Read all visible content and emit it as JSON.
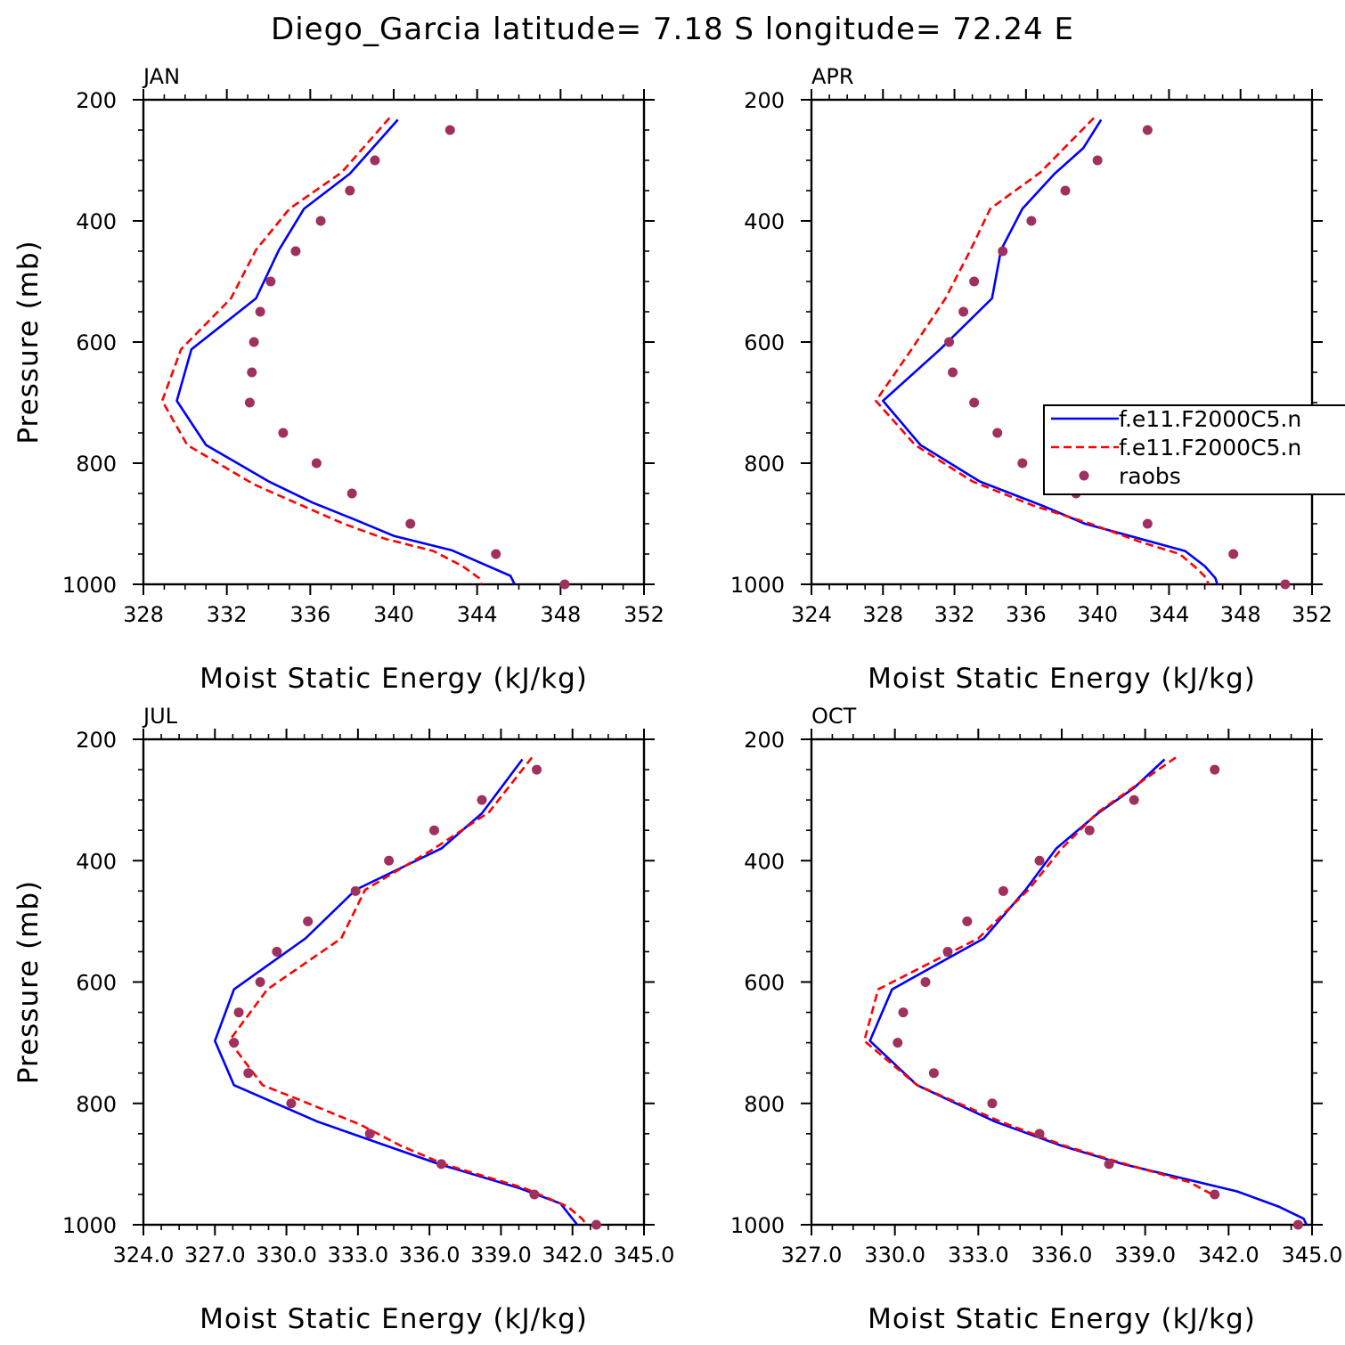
{
  "title": "Diego_Garcia  latitude= 7.18 S longitude= 72.24 E",
  "colors": {
    "model1": "#0000ff",
    "model2": "#ff0000",
    "raobs": "#a0305e"
  },
  "legend": {
    "panel": "APR",
    "entries": [
      {
        "label": "f.e11.F2000C5.n",
        "style": "solid",
        "series": "model1"
      },
      {
        "label": "f.e11.F2000C5.n",
        "style": "dashed",
        "series": "model2"
      },
      {
        "label": "raobs",
        "style": "marker",
        "series": "raobs"
      }
    ]
  },
  "chart_data": [
    {
      "panel": "JAN",
      "type": "line",
      "xlabel": "Moist Static Energy (kJ/kg)",
      "ylabel": "Pressure (mb)",
      "xlim": [
        328,
        352
      ],
      "ylim": [
        1000,
        200
      ],
      "xticks": [
        328,
        332,
        336,
        340,
        344,
        348,
        352
      ],
      "xtick_labels": [
        "328",
        "332",
        "336",
        "340",
        "344",
        "348",
        "352"
      ],
      "yticks": [
        200,
        400,
        600,
        800,
        1000
      ],
      "ytick_labels": [
        "200",
        "400",
        "600",
        "800",
        "1000"
      ],
      "series": [
        {
          "name": "f.e11.F2000C5.n",
          "style": "solid",
          "pressure": [
            233,
            322,
            380,
            448,
            528,
            612,
            697,
            770,
            830,
            865,
            894,
            920,
            944,
            986,
            1000
          ],
          "mse": [
            340.2,
            337.9,
            335.7,
            334.5,
            333.4,
            330.3,
            329.6,
            331.0,
            334.0,
            336.1,
            338.2,
            340.0,
            342.8,
            345.6,
            345.8
          ]
        },
        {
          "name": "f.e11.F2000C5.n",
          "style": "dashed",
          "pressure": [
            230,
            320,
            380,
            448,
            528,
            612,
            697,
            770,
            835,
            870,
            900,
            925,
            945,
            970,
            990,
            1000
          ],
          "mse": [
            339.8,
            337.5,
            335.0,
            333.4,
            332.2,
            329.8,
            328.9,
            330.1,
            333.3,
            335.6,
            337.6,
            339.6,
            341.9,
            343.3,
            344.1,
            344.2
          ]
        },
        {
          "name": "raobs",
          "style": "marker",
          "pressure": [
            250,
            300,
            350,
            400,
            450,
            500,
            550,
            600,
            650,
            700,
            750,
            800,
            850,
            900,
            950,
            1000
          ],
          "mse": [
            342.7,
            339.1,
            337.9,
            336.5,
            335.3,
            334.1,
            333.6,
            333.3,
            333.2,
            333.1,
            334.7,
            336.3,
            338.0,
            340.8,
            344.9,
            348.2
          ]
        }
      ]
    },
    {
      "panel": "APR",
      "type": "line",
      "xlabel": "Moist Static Energy (kJ/kg)",
      "ylabel": "Pressure (mb)",
      "xlim": [
        324,
        352
      ],
      "ylim": [
        1000,
        200
      ],
      "xticks": [
        324,
        328,
        332,
        336,
        340,
        344,
        348,
        352
      ],
      "xtick_labels": [
        "324",
        "328",
        "332",
        "336",
        "340",
        "344",
        "348",
        "352"
      ],
      "yticks": [
        200,
        400,
        600,
        800,
        1000
      ],
      "ytick_labels": [
        "200",
        "400",
        "600",
        "800",
        "1000"
      ],
      "series": [
        {
          "name": "f.e11.F2000C5.n",
          "style": "solid",
          "pressure": [
            233,
            280,
            322,
            380,
            448,
            528,
            612,
            697,
            770,
            830,
            870,
            900,
            945,
            970,
            990,
            1000
          ],
          "mse": [
            340.2,
            339.2,
            337.6,
            335.8,
            334.6,
            334.1,
            331.2,
            328.0,
            330.1,
            333.4,
            336.9,
            339.3,
            344.9,
            346.0,
            346.6,
            346.7
          ]
        },
        {
          "name": "f.e11.F2000C5.n",
          "style": "dashed",
          "pressure": [
            230,
            320,
            380,
            448,
            528,
            612,
            697,
            770,
            830,
            870,
            900,
            930,
            950,
            975,
            990,
            1000
          ],
          "mse": [
            339.8,
            336.8,
            334.0,
            332.9,
            331.5,
            329.6,
            327.6,
            329.8,
            333.0,
            336.4,
            339.6,
            342.4,
            344.6,
            345.6,
            346.1,
            346.2
          ]
        },
        {
          "name": "raobs",
          "style": "marker",
          "pressure": [
            250,
            300,
            350,
            400,
            450,
            500,
            550,
            600,
            650,
            700,
            750,
            800,
            850,
            900,
            950,
            1000
          ],
          "mse": [
            342.8,
            340.0,
            338.2,
            336.3,
            334.7,
            333.1,
            332.5,
            331.7,
            331.9,
            333.1,
            334.4,
            335.8,
            338.8,
            342.8,
            347.6,
            350.5
          ]
        }
      ]
    },
    {
      "panel": "JUL",
      "type": "line",
      "xlabel": "Moist Static Energy (kJ/kg)",
      "ylabel": "Pressure (mb)",
      "xlim": [
        324.0,
        345.0
      ],
      "ylim": [
        1000,
        200
      ],
      "xticks": [
        324.0,
        327.0,
        330.0,
        333.0,
        336.0,
        339.0,
        342.0,
        345.0
      ],
      "xtick_labels": [
        "324.0",
        "327.0",
        "330.0",
        "333.0",
        "336.0",
        "339.0",
        "342.0",
        "345.0"
      ],
      "yticks": [
        200,
        400,
        600,
        800,
        1000
      ],
      "ytick_labels": [
        "200",
        "400",
        "600",
        "800",
        "1000"
      ],
      "series": [
        {
          "name": "f.e11.F2000C5.n",
          "style": "solid",
          "pressure": [
            233,
            322,
            380,
            448,
            528,
            612,
            697,
            770,
            830,
            870,
            900,
            940,
            965,
            985,
            1000
          ],
          "mse": [
            339.9,
            338.2,
            336.5,
            332.9,
            330.8,
            327.8,
            327.0,
            327.8,
            331.3,
            334.2,
            336.4,
            339.8,
            341.5,
            341.9,
            342.2
          ]
        },
        {
          "name": "f.e11.F2000C5.n",
          "style": "dashed",
          "pressure": [
            230,
            320,
            380,
            448,
            528,
            612,
            697,
            770,
            795,
            835,
            870,
            900,
            940,
            970,
            990,
            1000
          ],
          "mse": [
            340.3,
            338.5,
            336.2,
            333.3,
            332.3,
            329.2,
            327.6,
            329.0,
            330.6,
            333.1,
            334.8,
            336.6,
            340.0,
            341.8,
            342.4,
            342.6
          ]
        },
        {
          "name": "raobs",
          "style": "marker",
          "pressure": [
            250,
            300,
            350,
            400,
            450,
            500,
            550,
            600,
            650,
            700,
            750,
            800,
            850,
            900,
            950,
            1000
          ],
          "mse": [
            340.5,
            338.2,
            336.2,
            334.3,
            332.9,
            330.9,
            329.6,
            328.9,
            328.0,
            327.8,
            328.4,
            330.2,
            333.5,
            336.5,
            340.4,
            343.0
          ]
        }
      ]
    },
    {
      "panel": "OCT",
      "type": "line",
      "xlabel": "Moist Static Energy (kJ/kg)",
      "ylabel": "Pressure (mb)",
      "xlim": [
        327.0,
        345.0
      ],
      "ylim": [
        1000,
        200
      ],
      "xticks": [
        327.0,
        330.0,
        333.0,
        336.0,
        339.0,
        342.0,
        345.0
      ],
      "xtick_labels": [
        "327.0",
        "330.0",
        "333.0",
        "336.0",
        "339.0",
        "342.0",
        "345.0"
      ],
      "yticks": [
        200,
        400,
        600,
        800,
        1000
      ],
      "ytick_labels": [
        "200",
        "400",
        "600",
        "800",
        "1000"
      ],
      "series": [
        {
          "name": "f.e11.F2000C5.n",
          "style": "solid",
          "pressure": [
            233,
            280,
            322,
            380,
            448,
            528,
            612,
            697,
            770,
            830,
            870,
            900,
            945,
            970,
            990,
            1000
          ],
          "mse": [
            339.7,
            338.6,
            337.3,
            335.8,
            334.7,
            333.2,
            329.9,
            329.1,
            330.8,
            333.6,
            336.0,
            338.2,
            342.3,
            343.8,
            344.7,
            344.8
          ]
        },
        {
          "name": "f.e11.F2000C5.n",
          "style": "dashed",
          "pressure": [
            230,
            320,
            380,
            448,
            528,
            612,
            697,
            770,
            830,
            870,
            900,
            930,
            950
          ],
          "mse": [
            340.1,
            337.3,
            336.0,
            334.8,
            333.0,
            329.4,
            328.9,
            330.8,
            333.8,
            336.1,
            338.3,
            340.6,
            341.4
          ]
        },
        {
          "name": "raobs",
          "style": "marker",
          "pressure": [
            250,
            300,
            350,
            400,
            450,
            500,
            550,
            600,
            650,
            700,
            750,
            800,
            850,
            900,
            950,
            1000
          ],
          "mse": [
            341.5,
            338.6,
            337.0,
            335.2,
            333.9,
            332.6,
            331.9,
            331.1,
            330.3,
            330.1,
            331.4,
            333.5,
            335.2,
            337.7,
            341.5,
            344.5
          ]
        }
      ]
    }
  ]
}
